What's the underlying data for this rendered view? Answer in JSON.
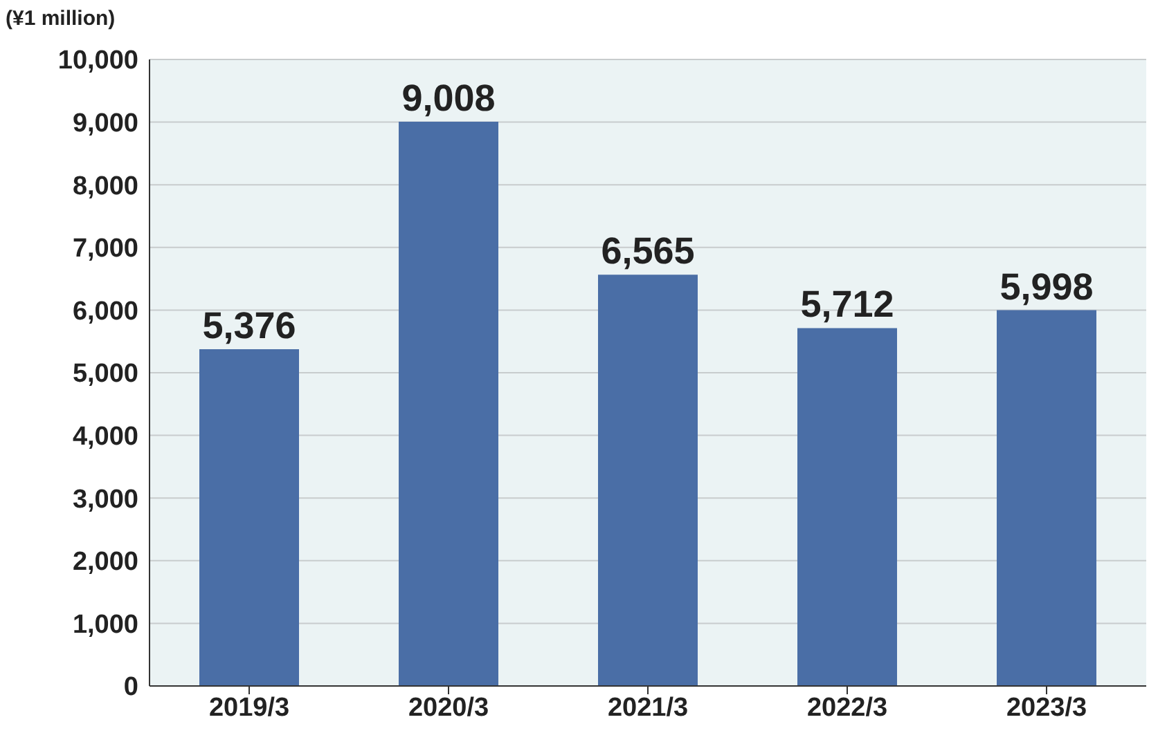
{
  "chart_data": {
    "type": "bar",
    "ylabel": "(¥1 million)",
    "categories": [
      "2019/3",
      "2020/3",
      "2021/3",
      "2022/3",
      "2023/3"
    ],
    "values": [
      5376,
      9008,
      6565,
      5712,
      5998
    ],
    "color": "#4a6ea6",
    "ylim": [
      0,
      10000
    ],
    "yticks": [
      {
        "value": 0,
        "label": "0"
      },
      {
        "value": 1000,
        "label": "1,000"
      },
      {
        "value": 2000,
        "label": "2,000"
      },
      {
        "value": 3000,
        "label": "3,000"
      },
      {
        "value": 4000,
        "label": "4,000"
      },
      {
        "value": 5000,
        "label": "5,000"
      },
      {
        "value": 6000,
        "label": "6,000"
      },
      {
        "value": 7000,
        "label": "7,000"
      },
      {
        "value": 8000,
        "label": "8,000"
      },
      {
        "value": 9000,
        "label": "9,000"
      },
      {
        "value": 10000,
        "label": "10,000"
      }
    ],
    "value_labels": [
      "5,376",
      "9,008",
      "6,565",
      "5,712",
      "5,998"
    ],
    "grid": "y"
  }
}
